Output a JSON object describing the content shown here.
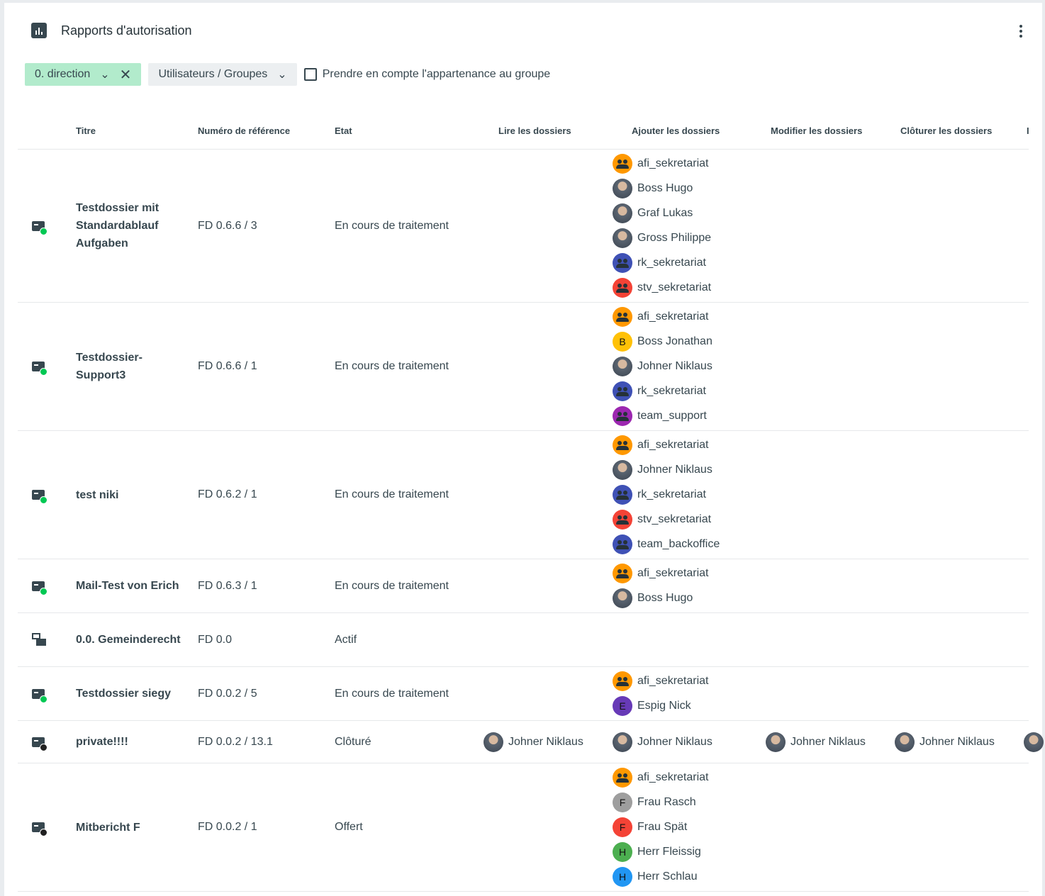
{
  "header": {
    "title": "Rapports d'autorisation",
    "icon": "bar-chart-icon",
    "menu_icon": "more-vertical-icon"
  },
  "filters": {
    "org_unit": "0. direction",
    "principal": "Utilisateurs / Groupes",
    "group_membership_label": "Prendre en compte l'appartenance au groupe",
    "group_membership_checked": false
  },
  "columns": [
    "Titre",
    "Numéro de référence",
    "Etat",
    "Lire les dossiers",
    "Ajouter les dossiers",
    "Modifier les dossiers",
    "Clôturer les dossiers",
    "I"
  ],
  "colors": {
    "group_orange": "#ff9800",
    "group_blue": "#3f51b5",
    "group_red": "#f44336",
    "group_purple": "#9c27b0",
    "status_active": "#00c853",
    "status_closed": "#212121",
    "chip_green": "#b2ebcc"
  },
  "rows": [
    {
      "icon": "dossier-icon",
      "status": "active",
      "title": "Testdossier mit Standardablauf Aufgaben",
      "ref": "FD 0.6.6 / 3",
      "state": "En cours de traitement",
      "read": [],
      "add": [
        {
          "type": "group",
          "color": "#ff9800",
          "name": "afi_sekretariat"
        },
        {
          "type": "photo",
          "name": "Boss Hugo"
        },
        {
          "type": "photo",
          "name": "Graf Lukas"
        },
        {
          "type": "photo",
          "name": "Gross Philippe"
        },
        {
          "type": "group",
          "color": "#3f51b5",
          "name": "rk_sekretariat"
        },
        {
          "type": "group",
          "color": "#f44336",
          "name": "stv_sekretariat"
        }
      ],
      "modify": [],
      "close": []
    },
    {
      "icon": "dossier-icon",
      "status": "active",
      "title": "Testdossier-Support3",
      "ref": "FD 0.6.6 / 1",
      "state": "En cours de traitement",
      "read": [],
      "add": [
        {
          "type": "group",
          "color": "#ff9800",
          "name": "afi_sekretariat"
        },
        {
          "type": "letter",
          "color": "#ffc107",
          "letter": "B",
          "name": "Boss Jonathan"
        },
        {
          "type": "photo",
          "name": "Johner Niklaus"
        },
        {
          "type": "group",
          "color": "#3f51b5",
          "name": "rk_sekretariat"
        },
        {
          "type": "group",
          "color": "#9c27b0",
          "name": "team_support"
        }
      ],
      "modify": [],
      "close": []
    },
    {
      "icon": "dossier-icon",
      "status": "active",
      "title": "test niki",
      "ref": "FD 0.6.2 / 1",
      "state": "En cours de traitement",
      "read": [],
      "add": [
        {
          "type": "group",
          "color": "#ff9800",
          "name": "afi_sekretariat"
        },
        {
          "type": "photo",
          "name": "Johner Niklaus"
        },
        {
          "type": "group",
          "color": "#3f51b5",
          "name": "rk_sekretariat"
        },
        {
          "type": "group",
          "color": "#f44336",
          "name": "stv_sekretariat"
        },
        {
          "type": "group",
          "color": "#3f51b5",
          "name": "team_backoffice"
        }
      ],
      "modify": [],
      "close": []
    },
    {
      "icon": "dossier-icon",
      "status": "active",
      "title": "Mail-Test von Erich",
      "ref": "FD 0.6.3 / 1",
      "state": "En cours de traitement",
      "read": [],
      "add": [
        {
          "type": "group",
          "color": "#ff9800",
          "name": "afi_sekretariat"
        },
        {
          "type": "photo",
          "name": "Boss Hugo"
        }
      ],
      "modify": [],
      "close": []
    },
    {
      "icon": "repository-icon",
      "status": "",
      "title": "0.0. Gemeinderecht",
      "ref": "FD 0.0",
      "state": "Actif",
      "read": [],
      "add": [],
      "modify": [],
      "close": []
    },
    {
      "icon": "dossier-icon",
      "status": "active",
      "title": "Testdossier siegy",
      "ref": "FD 0.0.2 / 5",
      "state": "En cours de traitement",
      "read": [],
      "add": [
        {
          "type": "group",
          "color": "#ff9800",
          "name": "afi_sekretariat"
        },
        {
          "type": "letter",
          "color": "#673ab7",
          "letter": "E",
          "name": "Espig Nick"
        }
      ],
      "modify": [],
      "close": []
    },
    {
      "icon": "dossier-icon",
      "status": "closed",
      "title": "private!!!!",
      "ref": "FD 0.0.2 / 13.1",
      "state": "Clôturé",
      "read": [
        {
          "type": "photo",
          "name": "Johner Niklaus"
        }
      ],
      "add": [
        {
          "type": "photo",
          "name": "Johner Niklaus"
        }
      ],
      "modify": [
        {
          "type": "photo",
          "name": "Johner Niklaus"
        }
      ],
      "close": [
        {
          "type": "photo",
          "name": "Johner Niklaus"
        }
      ],
      "extra": [
        {
          "type": "photo",
          "name": ""
        }
      ]
    },
    {
      "icon": "dossier-icon",
      "status": "closed",
      "title": "Mitbericht F",
      "ref": "FD 0.0.2 / 1",
      "state": "Offert",
      "read": [],
      "add": [
        {
          "type": "group",
          "color": "#ff9800",
          "name": "afi_sekretariat"
        },
        {
          "type": "letter",
          "color": "#9e9e9e",
          "letter": "F",
          "name": "Frau Rasch"
        },
        {
          "type": "letter",
          "color": "#f44336",
          "letter": "F",
          "name": "Frau Spät"
        },
        {
          "type": "letter",
          "color": "#4caf50",
          "letter": "H",
          "name": "Herr Fleissig"
        },
        {
          "type": "letter",
          "color": "#2196f3",
          "letter": "H",
          "name": "Herr Schlau"
        }
      ],
      "modify": [],
      "close": []
    }
  ]
}
